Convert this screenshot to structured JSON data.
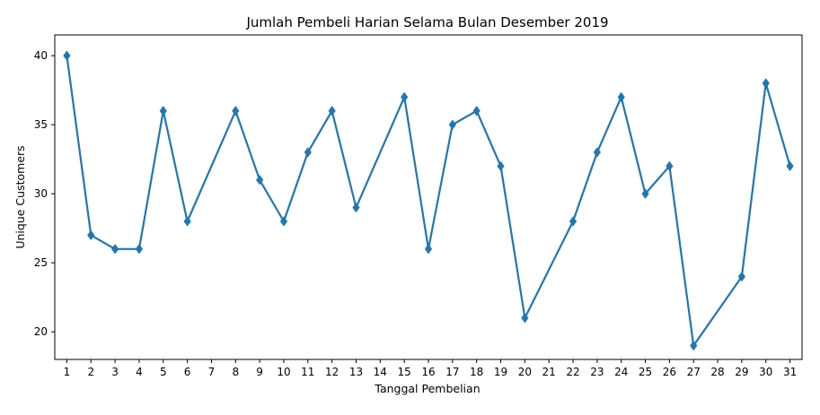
{
  "chart_data": {
    "type": "line",
    "title": "Jumlah Pembeli Harian Selama Bulan Desember 2019",
    "xlabel": "Tanggal Pembelian",
    "ylabel": "Unique Customers",
    "x_ticks": [
      "1",
      "2",
      "3",
      "4",
      "5",
      "6",
      "7",
      "8",
      "9",
      "10",
      "11",
      "12",
      "13",
      "14",
      "15",
      "16",
      "17",
      "18",
      "19",
      "20",
      "21",
      "22",
      "23",
      "24",
      "25",
      "26",
      "27",
      "28",
      "29",
      "30",
      "31"
    ],
    "y_ticks": [
      20,
      25,
      30,
      35,
      40
    ],
    "xlim": [
      -0.5,
      30.5
    ],
    "ylim": [
      18.0,
      41.5
    ],
    "grid": false,
    "legend": "none",
    "series": [
      {
        "color": "#1f77b4",
        "marker": "diamond",
        "points": [
          {
            "x": "1",
            "y": 40
          },
          {
            "x": "2",
            "y": 27
          },
          {
            "x": "3",
            "y": 26
          },
          {
            "x": "4",
            "y": 26
          },
          {
            "x": "5",
            "y": 36
          },
          {
            "x": "6",
            "y": 28
          },
          {
            "x": "8",
            "y": 36
          },
          {
            "x": "9",
            "y": 31
          },
          {
            "x": "10",
            "y": 28
          },
          {
            "x": "11",
            "y": 33
          },
          {
            "x": "12",
            "y": 36
          },
          {
            "x": "13",
            "y": 29
          },
          {
            "x": "15",
            "y": 37
          },
          {
            "x": "16",
            "y": 26
          },
          {
            "x": "17",
            "y": 35
          },
          {
            "x": "18",
            "y": 36
          },
          {
            "x": "19",
            "y": 32
          },
          {
            "x": "20",
            "y": 21
          },
          {
            "x": "22",
            "y": 28
          },
          {
            "x": "23",
            "y": 33
          },
          {
            "x": "24",
            "y": 37
          },
          {
            "x": "25",
            "y": 30
          },
          {
            "x": "26",
            "y": 32
          },
          {
            "x": "27",
            "y": 19
          },
          {
            "x": "29",
            "y": 24
          },
          {
            "x": "30",
            "y": 38
          },
          {
            "x": "31",
            "y": 32
          }
        ]
      }
    ]
  }
}
